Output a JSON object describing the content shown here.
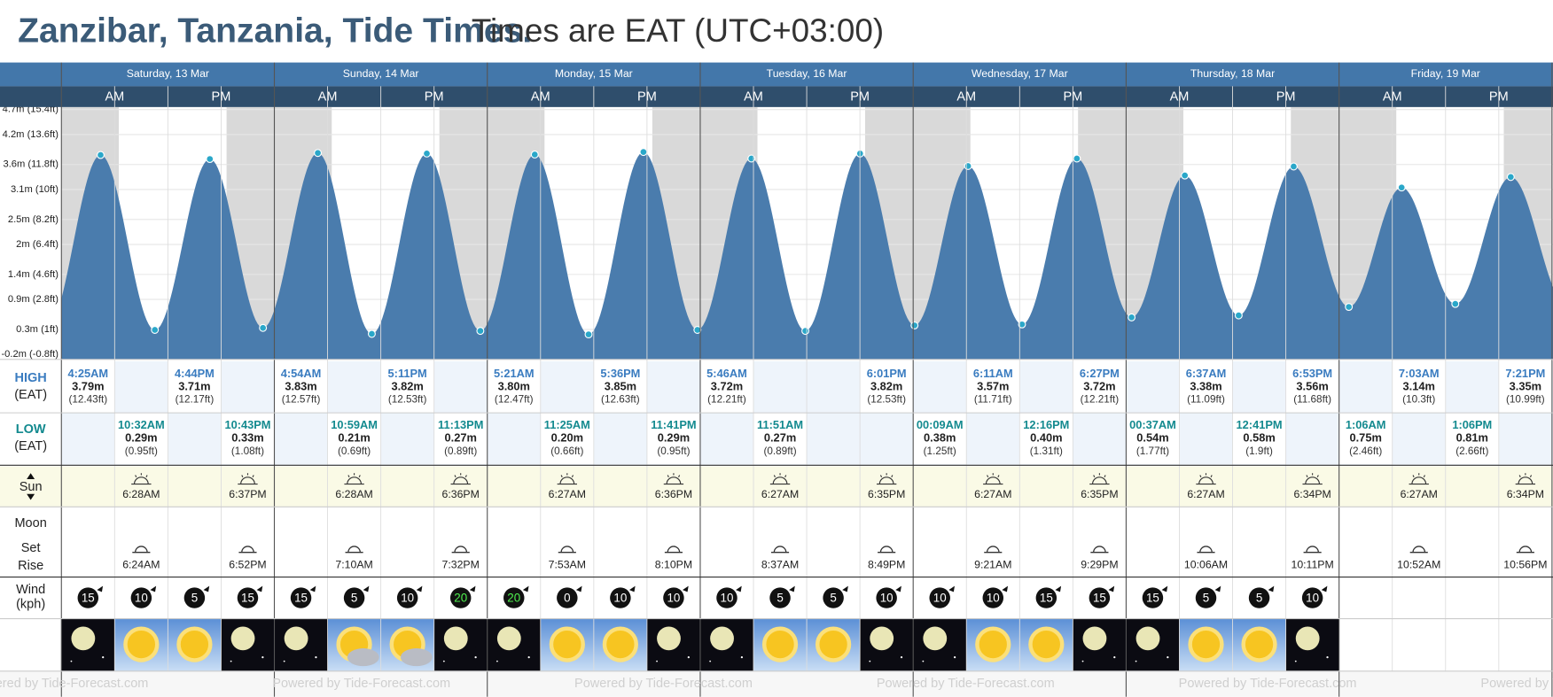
{
  "title": "Zanzibar, Tanzania, Tide Times.",
  "subtitle": "Times are EAT (UTC+03:00)",
  "am": "AM",
  "pm": "PM",
  "row_labels": {
    "high": "HIGH",
    "high_tz": "(EAT)",
    "low": "LOW",
    "low_tz": "(EAT)",
    "sun": "Sun",
    "moon": "Moon",
    "moon_set": "Set",
    "moon_rise": "Rise",
    "wind": "Wind",
    "wind_unit": "(kph)"
  },
  "footer": "Powered by Tide-Forecast.com",
  "chart_data": {
    "type": "area",
    "ylim": [
      -0.3,
      4.75
    ],
    "yticks": [
      {
        "value": 4.7,
        "label": "4.7m (15.4ft)"
      },
      {
        "value": 4.2,
        "label": "4.2m (13.6ft)"
      },
      {
        "value": 3.6,
        "label": "3.6m (11.8ft)"
      },
      {
        "value": 3.1,
        "label": "3.1m (10ft)"
      },
      {
        "value": 2.5,
        "label": "2.5m (8.2ft)"
      },
      {
        "value": 2,
        "label": "2m (6.4ft)"
      },
      {
        "value": 1.4,
        "label": "1.4m (4.6ft)"
      },
      {
        "value": 0.9,
        "label": "0.9m (2.8ft)"
      },
      {
        "value": 0.3,
        "label": "0.3m (1ft)"
      },
      {
        "value": -0.2,
        "label": "-0.2m (-0.8ft)"
      }
    ],
    "days": [
      {
        "label": "Saturday, 13 Mar",
        "high": [
          {
            "time": "4:25AM",
            "m": 3.79,
            "m_label": "3.79m",
            "ft_label": "(12.43ft)"
          },
          {
            "time": "4:44PM",
            "m": 3.71,
            "m_label": "3.71m",
            "ft_label": "(12.17ft)"
          }
        ],
        "low": [
          {
            "time": "10:32AM",
            "m": 0.29,
            "m_label": "0.29m",
            "ft_label": "(0.95ft)"
          },
          {
            "time": "10:43PM",
            "m": 0.33,
            "m_label": "0.33m",
            "ft_label": "(1.08ft)"
          }
        ],
        "sunrise": "6:28AM",
        "sunset": "6:37PM",
        "moonset": "6:24AM",
        "moonrise": "6:52PM",
        "wind": [
          15,
          10,
          5,
          15
        ]
      },
      {
        "label": "Sunday, 14 Mar",
        "high": [
          {
            "time": "4:54AM",
            "m": 3.83,
            "m_label": "3.83m",
            "ft_label": "(12.57ft)"
          },
          {
            "time": "5:11PM",
            "m": 3.82,
            "m_label": "3.82m",
            "ft_label": "(12.53ft)"
          }
        ],
        "low": [
          {
            "time": "10:59AM",
            "m": 0.21,
            "m_label": "0.21m",
            "ft_label": "(0.69ft)"
          },
          {
            "time": "11:13PM",
            "m": 0.27,
            "m_label": "0.27m",
            "ft_label": "(0.89ft)"
          }
        ],
        "sunrise": "6:28AM",
        "sunset": "6:36PM",
        "moonset": "7:10AM",
        "moonrise": "7:32PM",
        "wind": [
          15,
          5,
          10,
          20
        ]
      },
      {
        "label": "Monday, 15 Mar",
        "high": [
          {
            "time": "5:21AM",
            "m": 3.8,
            "m_label": "3.80m",
            "ft_label": "(12.47ft)"
          },
          {
            "time": "5:36PM",
            "m": 3.85,
            "m_label": "3.85m",
            "ft_label": "(12.63ft)"
          }
        ],
        "low": [
          {
            "time": "11:25AM",
            "m": 0.2,
            "m_label": "0.20m",
            "ft_label": "(0.66ft)"
          },
          {
            "time": "11:41PM",
            "m": 0.29,
            "m_label": "0.29m",
            "ft_label": "(0.95ft)"
          }
        ],
        "sunrise": "6:27AM",
        "sunset": "6:36PM",
        "moonset": "7:53AM",
        "moonrise": "8:10PM",
        "wind": [
          20,
          0,
          10,
          10
        ]
      },
      {
        "label": "Tuesday, 16 Mar",
        "high": [
          {
            "time": "5:46AM",
            "m": 3.72,
            "m_label": "3.72m",
            "ft_label": "(12.21ft)"
          },
          {
            "time": "6:01PM",
            "m": 3.82,
            "m_label": "3.82m",
            "ft_label": "(12.53ft)"
          }
        ],
        "low": [
          {
            "time": "11:51AM",
            "m": 0.27,
            "m_label": "0.27m",
            "ft_label": "(0.89ft)"
          }
        ],
        "sunrise": "6:27AM",
        "sunset": "6:35PM",
        "moonset": "8:37AM",
        "moonrise": "8:49PM",
        "wind": [
          10,
          5,
          5,
          10
        ]
      },
      {
        "label": "Wednesday, 17 Mar",
        "high": [
          {
            "time": "6:11AM",
            "m": 3.57,
            "m_label": "3.57m",
            "ft_label": "(11.71ft)"
          },
          {
            "time": "6:27PM",
            "m": 3.72,
            "m_label": "3.72m",
            "ft_label": "(12.21ft)"
          }
        ],
        "low": [
          {
            "time": "00:09AM",
            "m": 0.38,
            "m_label": "0.38m",
            "ft_label": "(1.25ft)"
          },
          {
            "time": "12:16PM",
            "m": 0.4,
            "m_label": "0.40m",
            "ft_label": "(1.31ft)"
          }
        ],
        "sunrise": "6:27AM",
        "sunset": "6:35PM",
        "moonset": "9:21AM",
        "moonrise": "9:29PM",
        "wind": [
          10,
          10,
          15,
          15
        ]
      },
      {
        "label": "Thursday, 18 Mar",
        "high": [
          {
            "time": "6:37AM",
            "m": 3.38,
            "m_label": "3.38m",
            "ft_label": "(11.09ft)"
          },
          {
            "time": "6:53PM",
            "m": 3.56,
            "m_label": "3.56m",
            "ft_label": "(11.68ft)"
          }
        ],
        "low": [
          {
            "time": "00:37AM",
            "m": 0.54,
            "m_label": "0.54m",
            "ft_label": "(1.77ft)"
          },
          {
            "time": "12:41PM",
            "m": 0.58,
            "m_label": "0.58m",
            "ft_label": "(1.9ft)"
          }
        ],
        "sunrise": "6:27AM",
        "sunset": "6:34PM",
        "moonset": "10:06AM",
        "moonrise": "10:11PM",
        "wind": [
          15,
          5,
          5,
          10
        ]
      },
      {
        "label": "Friday, 19 Mar",
        "high": [
          {
            "time": "7:03AM",
            "m": 3.14,
            "m_label": "3.14m",
            "ft_label": "(10.3ft)"
          },
          {
            "time": "7:21PM",
            "m": 3.35,
            "m_label": "3.35m",
            "ft_label": "(10.99ft)"
          }
        ],
        "low": [
          {
            "time": "1:06AM",
            "m": 0.75,
            "m_label": "0.75m",
            "ft_label": "(2.46ft)"
          },
          {
            "time": "1:06PM",
            "m": 0.81,
            "m_label": "0.81m",
            "ft_label": "(2.66ft)"
          }
        ],
        "sunrise": "6:27AM",
        "sunset": "6:34PM",
        "moonset": "10:52AM",
        "moonrise": "10:56PM",
        "wind": []
      }
    ]
  }
}
